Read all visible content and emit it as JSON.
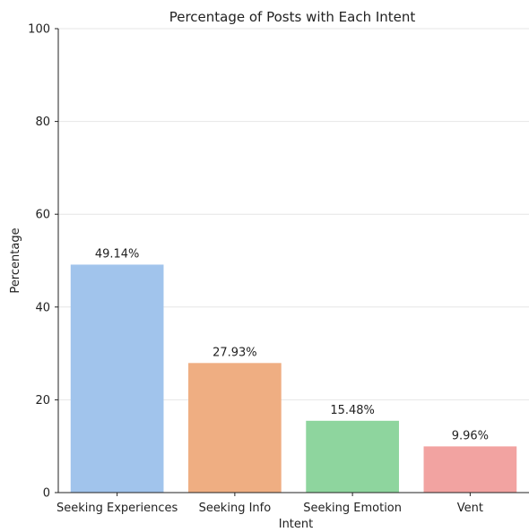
{
  "chart_data": {
    "type": "bar",
    "title": "Percentage of Posts with Each Intent",
    "xlabel": "Intent",
    "ylabel": "Percentage",
    "categories": [
      "Seeking Experiences",
      "Seeking Info",
      "Seeking Emotion",
      "Vent"
    ],
    "values": [
      49.14,
      27.93,
      15.48,
      9.96
    ],
    "data_labels": [
      "49.14%",
      "27.93%",
      "15.48%",
      "9.96%"
    ],
    "colors": [
      "#a1c4ec",
      "#efae82",
      "#8ed59e",
      "#f2a3a1"
    ],
    "ylim": [
      0,
      100
    ],
    "yticks": [
      0,
      20,
      40,
      60,
      80,
      100
    ],
    "grid": true
  }
}
